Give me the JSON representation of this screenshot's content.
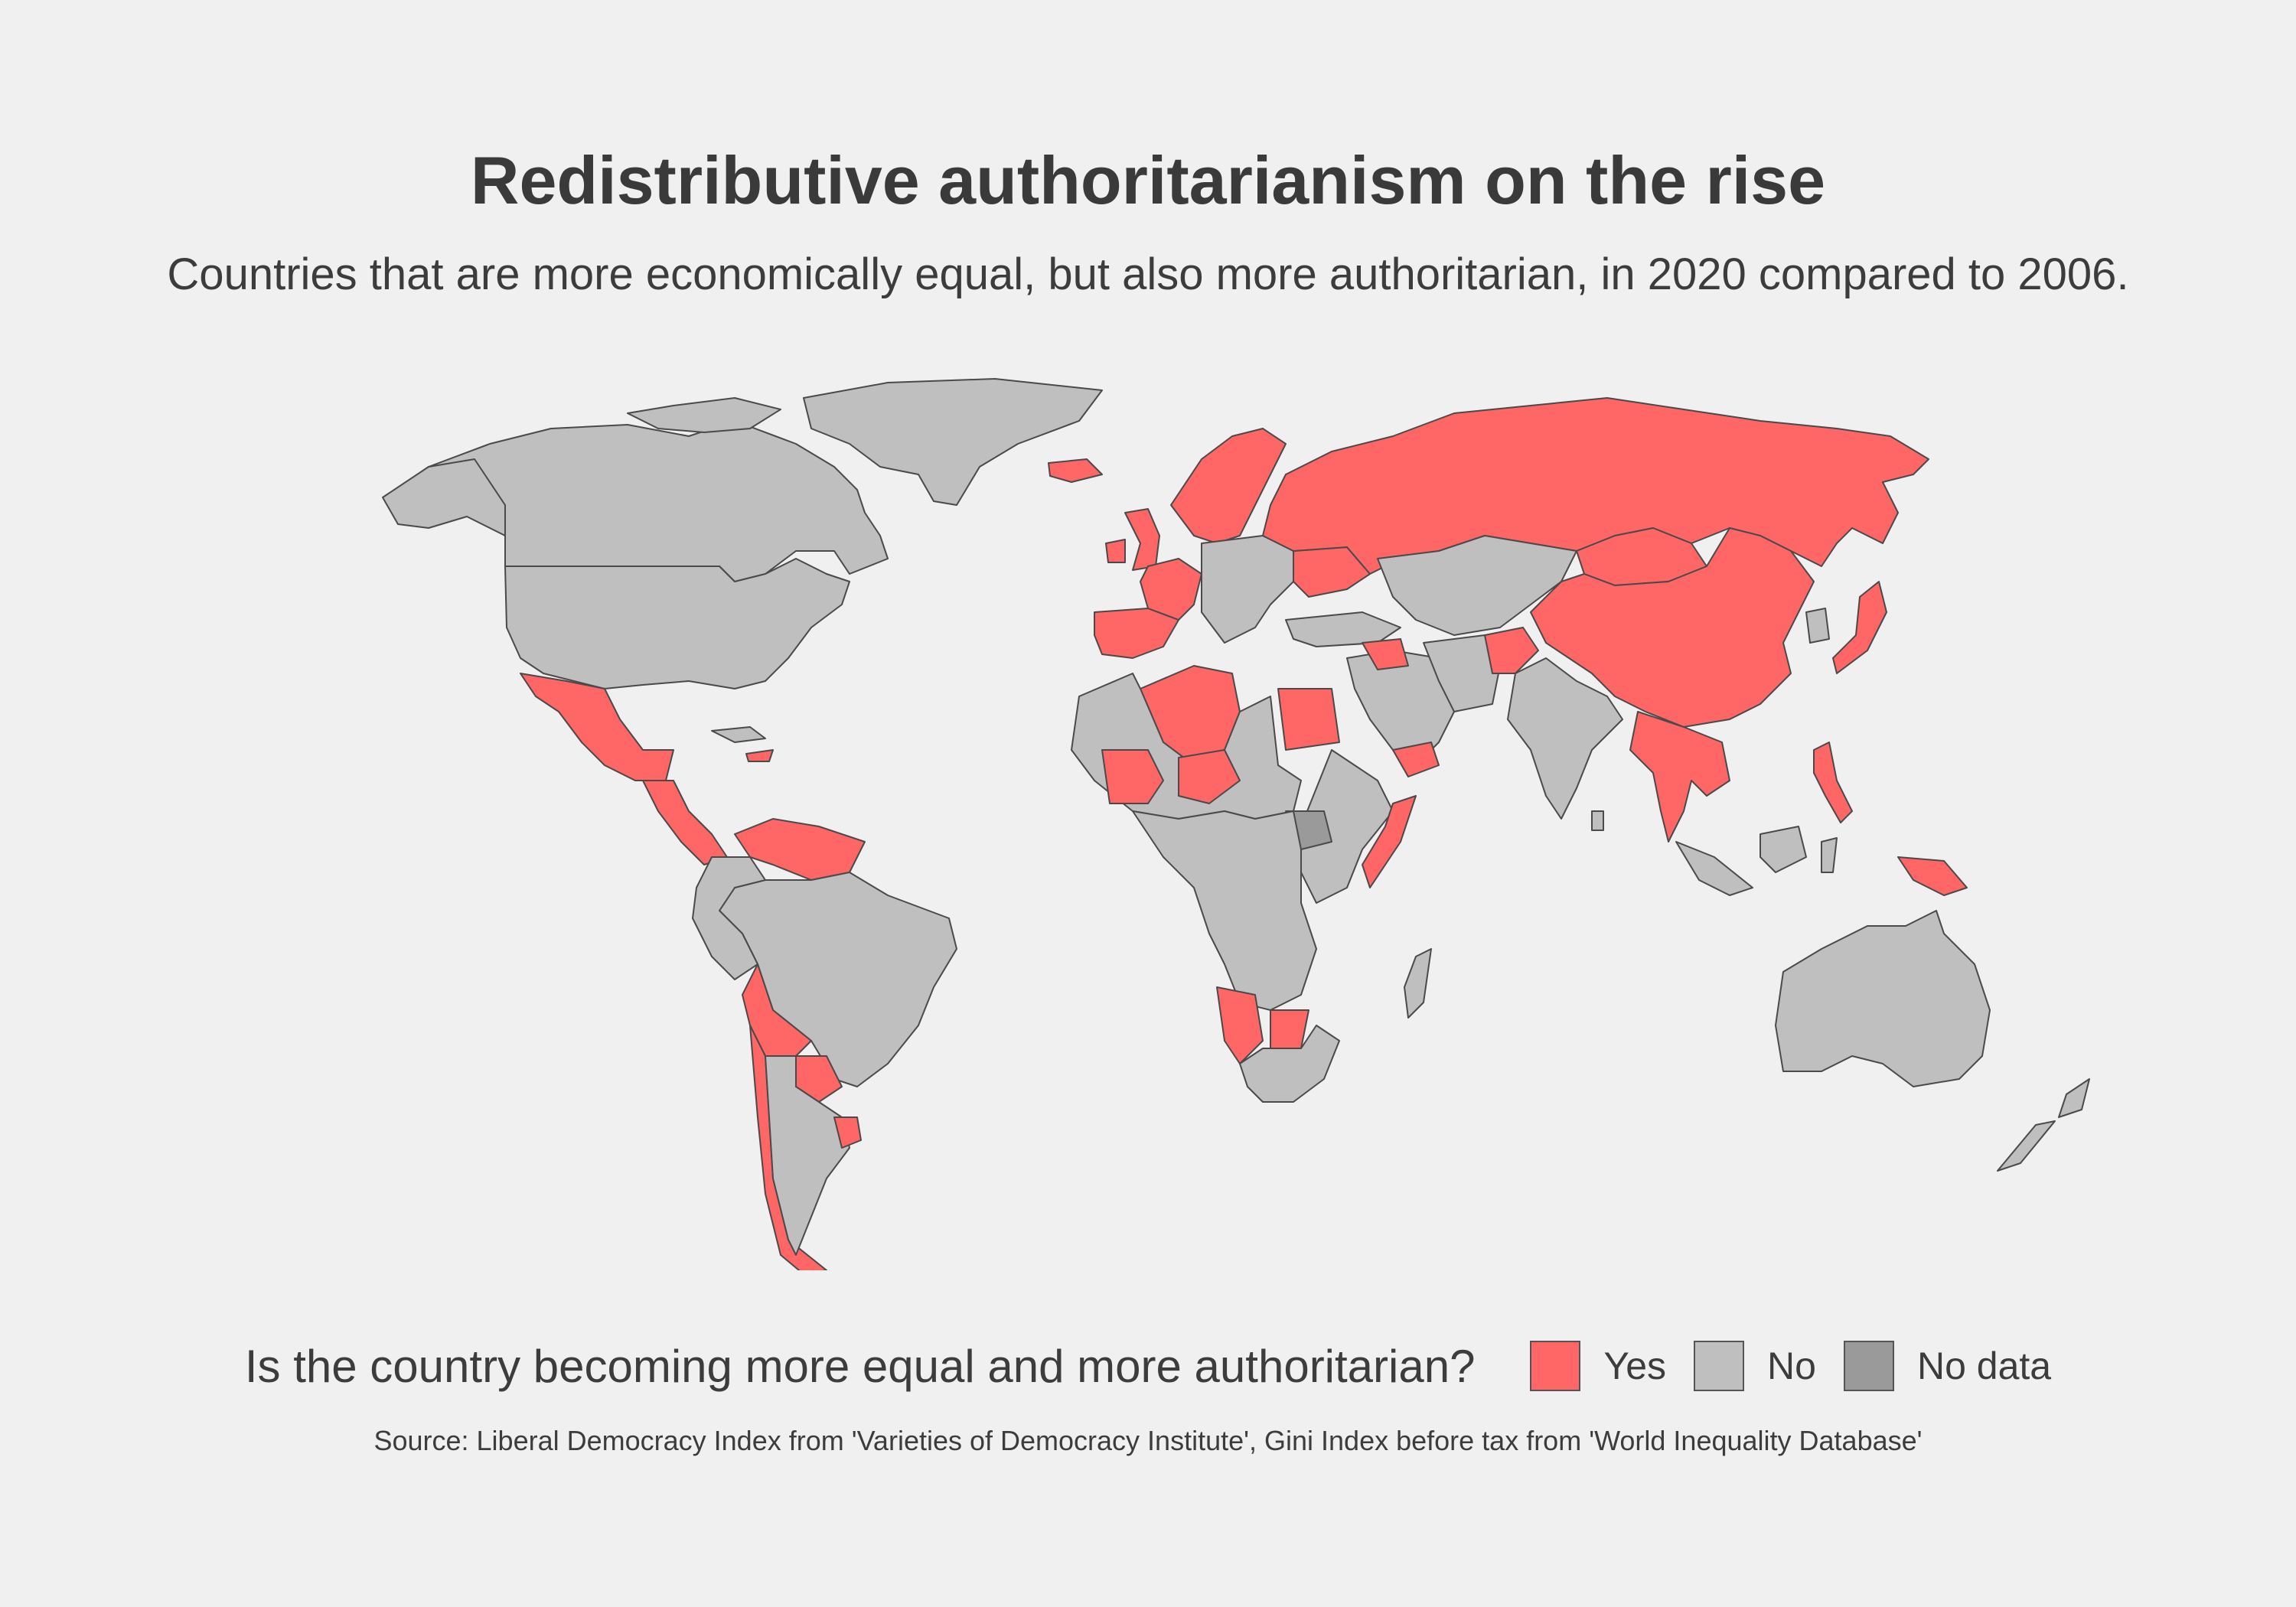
{
  "title": "Redistributive authoritarianism on the rise",
  "subtitle": "Countries that are more economically equal, but also more authoritarian, in 2020 compared to 2006.",
  "legend": {
    "title": "Is the country becoming more equal and more authoritarian?",
    "items": [
      {
        "label": "Yes",
        "color": "#ff6666"
      },
      {
        "label": "No",
        "color": "#bfbfbf"
      },
      {
        "label": "No data",
        "color": "#9a9a9a"
      }
    ]
  },
  "source": "Source: Liberal Democracy Index from 'Varieties of Democracy Institute', Gini Index before tax from 'World Inequality Database'",
  "map_regions": [
    {
      "name": "Greenland",
      "status": "No"
    },
    {
      "name": "Canada",
      "status": "No"
    },
    {
      "name": "United States",
      "status": "No"
    },
    {
      "name": "Mexico",
      "status": "Yes"
    },
    {
      "name": "Central America",
      "status": "Yes"
    },
    {
      "name": "Venezuela",
      "status": "Yes"
    },
    {
      "name": "Brazil",
      "status": "No"
    },
    {
      "name": "Bolivia",
      "status": "Yes"
    },
    {
      "name": "Paraguay",
      "status": "Yes"
    },
    {
      "name": "Chile",
      "status": "Yes"
    },
    {
      "name": "Argentina",
      "status": "No"
    },
    {
      "name": "Uruguay",
      "status": "Yes"
    },
    {
      "name": "Iceland",
      "status": "Yes"
    },
    {
      "name": "United Kingdom",
      "status": "Yes"
    },
    {
      "name": "France",
      "status": "Yes"
    },
    {
      "name": "Spain",
      "status": "Yes"
    },
    {
      "name": "Scandinavia",
      "status": "Yes"
    },
    {
      "name": "Central Europe",
      "status": "No"
    },
    {
      "name": "Ukraine",
      "status": "Yes"
    },
    {
      "name": "Russia",
      "status": "Yes"
    },
    {
      "name": "China",
      "status": "Yes"
    },
    {
      "name": "Mongolia",
      "status": "Yes"
    },
    {
      "name": "Japan",
      "status": "Yes"
    },
    {
      "name": "Kazakhstan",
      "status": "No"
    },
    {
      "name": "Middle East",
      "status": "No"
    },
    {
      "name": "Syria",
      "status": "Yes"
    },
    {
      "name": "Afghanistan",
      "status": "Yes"
    },
    {
      "name": "Yemen",
      "status": "Yes"
    },
    {
      "name": "India",
      "status": "No"
    },
    {
      "name": "Southeast Asia",
      "status": "Yes"
    },
    {
      "name": "Philippines",
      "status": "Yes"
    },
    {
      "name": "Indonesia",
      "status": "No"
    },
    {
      "name": "Papua New Guinea",
      "status": "Yes"
    },
    {
      "name": "Australia",
      "status": "No"
    },
    {
      "name": "New Zealand",
      "status": "No"
    },
    {
      "name": "Algeria",
      "status": "Yes"
    },
    {
      "name": "Mali",
      "status": "Yes"
    },
    {
      "name": "Niger",
      "status": "Yes"
    },
    {
      "name": "Egypt",
      "status": "Yes"
    },
    {
      "name": "North Africa",
      "status": "No"
    },
    {
      "name": "South Sudan",
      "status": "No data"
    },
    {
      "name": "Somalia",
      "status": "Yes"
    },
    {
      "name": "Central Africa",
      "status": "No"
    },
    {
      "name": "Namibia",
      "status": "Yes"
    },
    {
      "name": "Botswana",
      "status": "Yes"
    },
    {
      "name": "South Africa",
      "status": "No"
    },
    {
      "name": "Madagascar",
      "status": "No"
    }
  ]
}
